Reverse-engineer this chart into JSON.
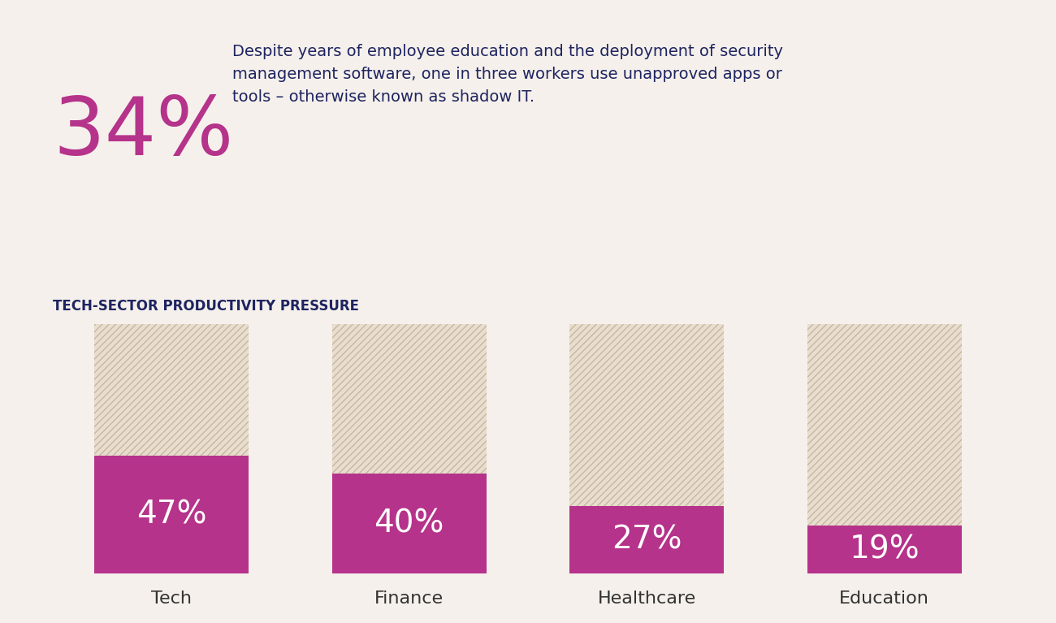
{
  "background_color": "#f5f0eb",
  "big_number": "34%",
  "big_number_color": "#b5338a",
  "description_text": "Despite years of employee education and the deployment of security\nmanagement software, one in three workers use unapproved apps or\ntools – otherwise known as shadow IT.",
  "description_color": "#1e2460",
  "section_title": "TECH-SECTOR PRODUCTIVITY PRESSURE",
  "section_title_color": "#1e2460",
  "categories": [
    "Tech",
    "Finance",
    "Healthcare",
    "Education"
  ],
  "values": [
    47,
    40,
    27,
    19
  ],
  "bar_total": 100,
  "bar_color": "#b5338a",
  "hatch_color": "#c8b89a",
  "hatch_bg_color": "#e8ddd0",
  "bar_label_color": "#ffffff",
  "bar_label_fontsize": 28,
  "cat_label_fontsize": 16,
  "cat_label_color": "#333333"
}
